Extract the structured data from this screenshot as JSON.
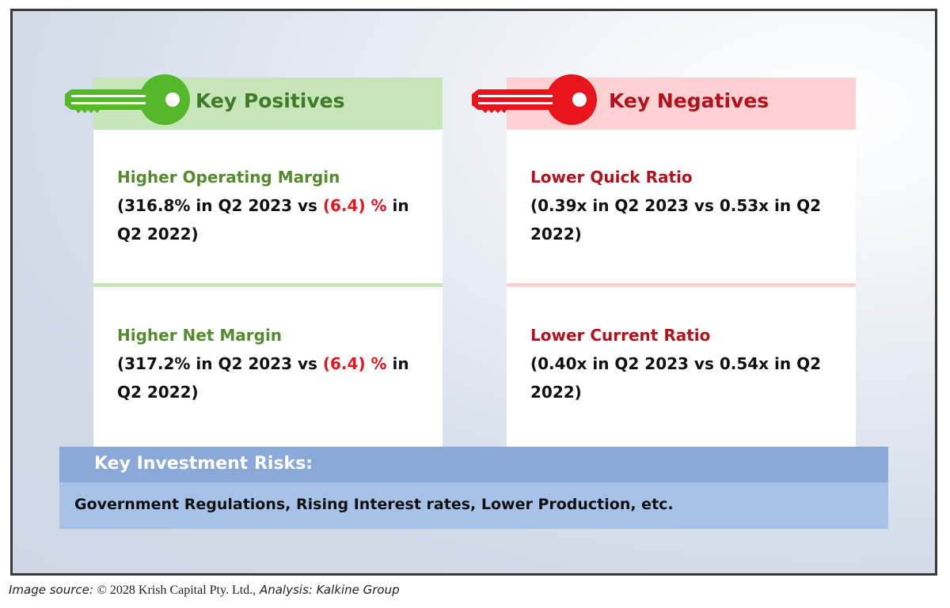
{
  "colors": {
    "positive_accent": "#55b82a",
    "negative_accent": "#e8141c",
    "risk_header": "#8aa9d9",
    "risk_body": "#a7c2e8"
  },
  "positives": {
    "title": "Key Positives",
    "items": [
      {
        "title": "Higher Operating Margin",
        "text_before": "(316.8% in Q2 2023 vs ",
        "highlight": "(6.4) %",
        "text_after": " in Q2 2022)"
      },
      {
        "title": "Higher Net Margin",
        "text_before": "(317.2% in Q2 2023 vs ",
        "highlight": "(6.4) %",
        "text_after": " in Q2 2022)"
      }
    ]
  },
  "negatives": {
    "title": "Key Negatives",
    "items": [
      {
        "title": "Lower Quick Ratio",
        "text": "(0.39x in Q2 2023 vs 0.53x in Q2 2022)"
      },
      {
        "title": "Lower Current Ratio",
        "text": "(0.40x in Q2 2023 vs 0.54x in Q2 2022)"
      }
    ]
  },
  "risks": {
    "title": "Key Investment Risks:",
    "text": "Government Regulations, Rising Interest rates, Lower Production, etc."
  },
  "source": {
    "label": "Image source:",
    "copyright": "© 2028 Krish Capital Pty. Ltd.,",
    "analysis": "Analysis: Kalkine Group"
  }
}
